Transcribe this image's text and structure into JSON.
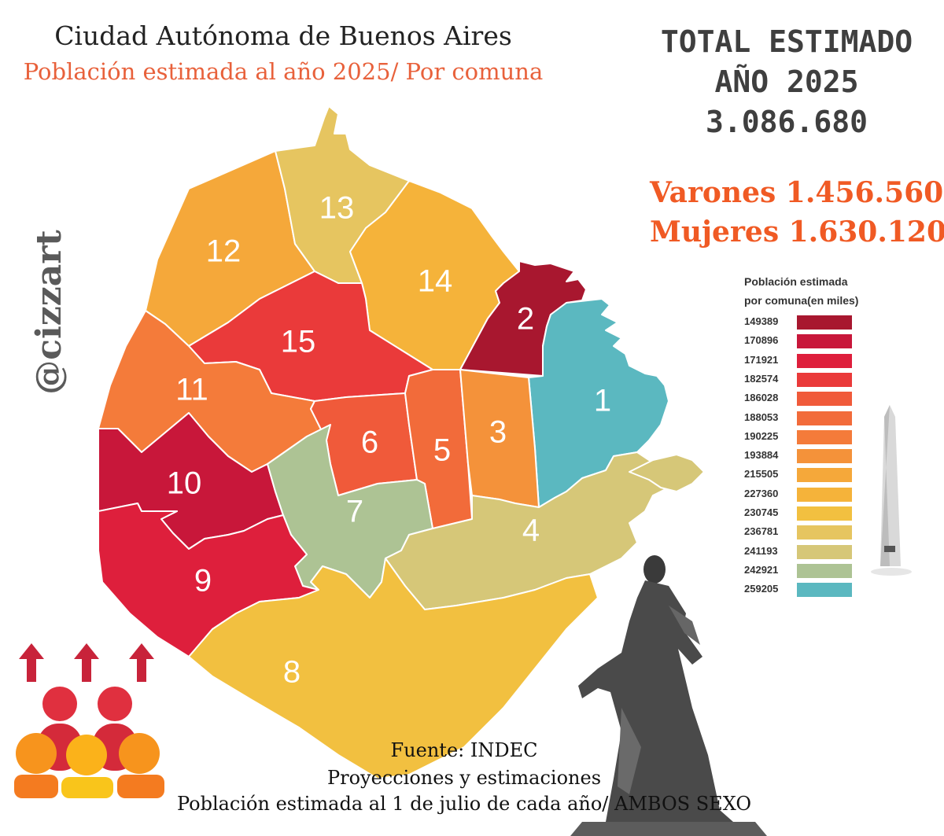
{
  "header": {
    "title": "Ciudad Autónoma de Buenos Aires",
    "subtitle": "Población estimada al año 2025/ Por comuna"
  },
  "totals": {
    "line1": "TOTAL ESTIMADO",
    "line2": "AÑO 2025",
    "total": "3.086.680",
    "varones": "Varones 1.456.560",
    "mujeres": "Mujeres 1.630.120"
  },
  "handle": "@cizzart",
  "legend": {
    "title_line1": "Población estimada",
    "title_line2": "por comuna(en miles)",
    "items": [
      {
        "value": "149389",
        "color": "#a8172f"
      },
      {
        "value": "170896",
        "color": "#c8173a"
      },
      {
        "value": "171921",
        "color": "#de1f3c"
      },
      {
        "value": "182574",
        "color": "#ea3a3a"
      },
      {
        "value": "186028",
        "color": "#f05a3a"
      },
      {
        "value": "188053",
        "color": "#f26b3a"
      },
      {
        "value": "190225",
        "color": "#f47b3a"
      },
      {
        "value": "193884",
        "color": "#f4923a"
      },
      {
        "value": "215505",
        "color": "#f5a83a"
      },
      {
        "value": "227360",
        "color": "#f5b33a"
      },
      {
        "value": "230745",
        "color": "#f2c040"
      },
      {
        "value": "236781",
        "color": "#e6c560"
      },
      {
        "value": "241193",
        "color": "#d6c778"
      },
      {
        "value": "242921",
        "color": "#adc394"
      },
      {
        "value": "259205",
        "color": "#5bb8c0"
      }
    ]
  },
  "comunas": [
    {
      "label": "1",
      "color": "#5bb8c0"
    },
    {
      "label": "2",
      "color": "#a8172f"
    },
    {
      "label": "3",
      "color": "#f4923a"
    },
    {
      "label": "4",
      "color": "#d6c778"
    },
    {
      "label": "5",
      "color": "#f26b3a"
    },
    {
      "label": "6",
      "color": "#f05a3a"
    },
    {
      "label": "7",
      "color": "#adc394"
    },
    {
      "label": "8",
      "color": "#f2c040"
    },
    {
      "label": "9",
      "color": "#de1f3c"
    },
    {
      "label": "10",
      "color": "#c8173a"
    },
    {
      "label": "11",
      "color": "#f47b3a"
    },
    {
      "label": "12",
      "color": "#f5a83a"
    },
    {
      "label": "13",
      "color": "#e6c560"
    },
    {
      "label": "14",
      "color": "#f5b33a"
    },
    {
      "label": "15",
      "color": "#ea3a3a"
    }
  ],
  "source": {
    "line1": "Fuente: INDEC",
    "line2": "Proyecciones y estimaciones",
    "line3": "Población estimada al 1 de julio de cada año/ AMBOS SEXO"
  },
  "decor": {
    "people_icon": "population-growth-icon",
    "obelisk_icon": "obelisk-icon",
    "statue_icon": "statue-icon"
  }
}
